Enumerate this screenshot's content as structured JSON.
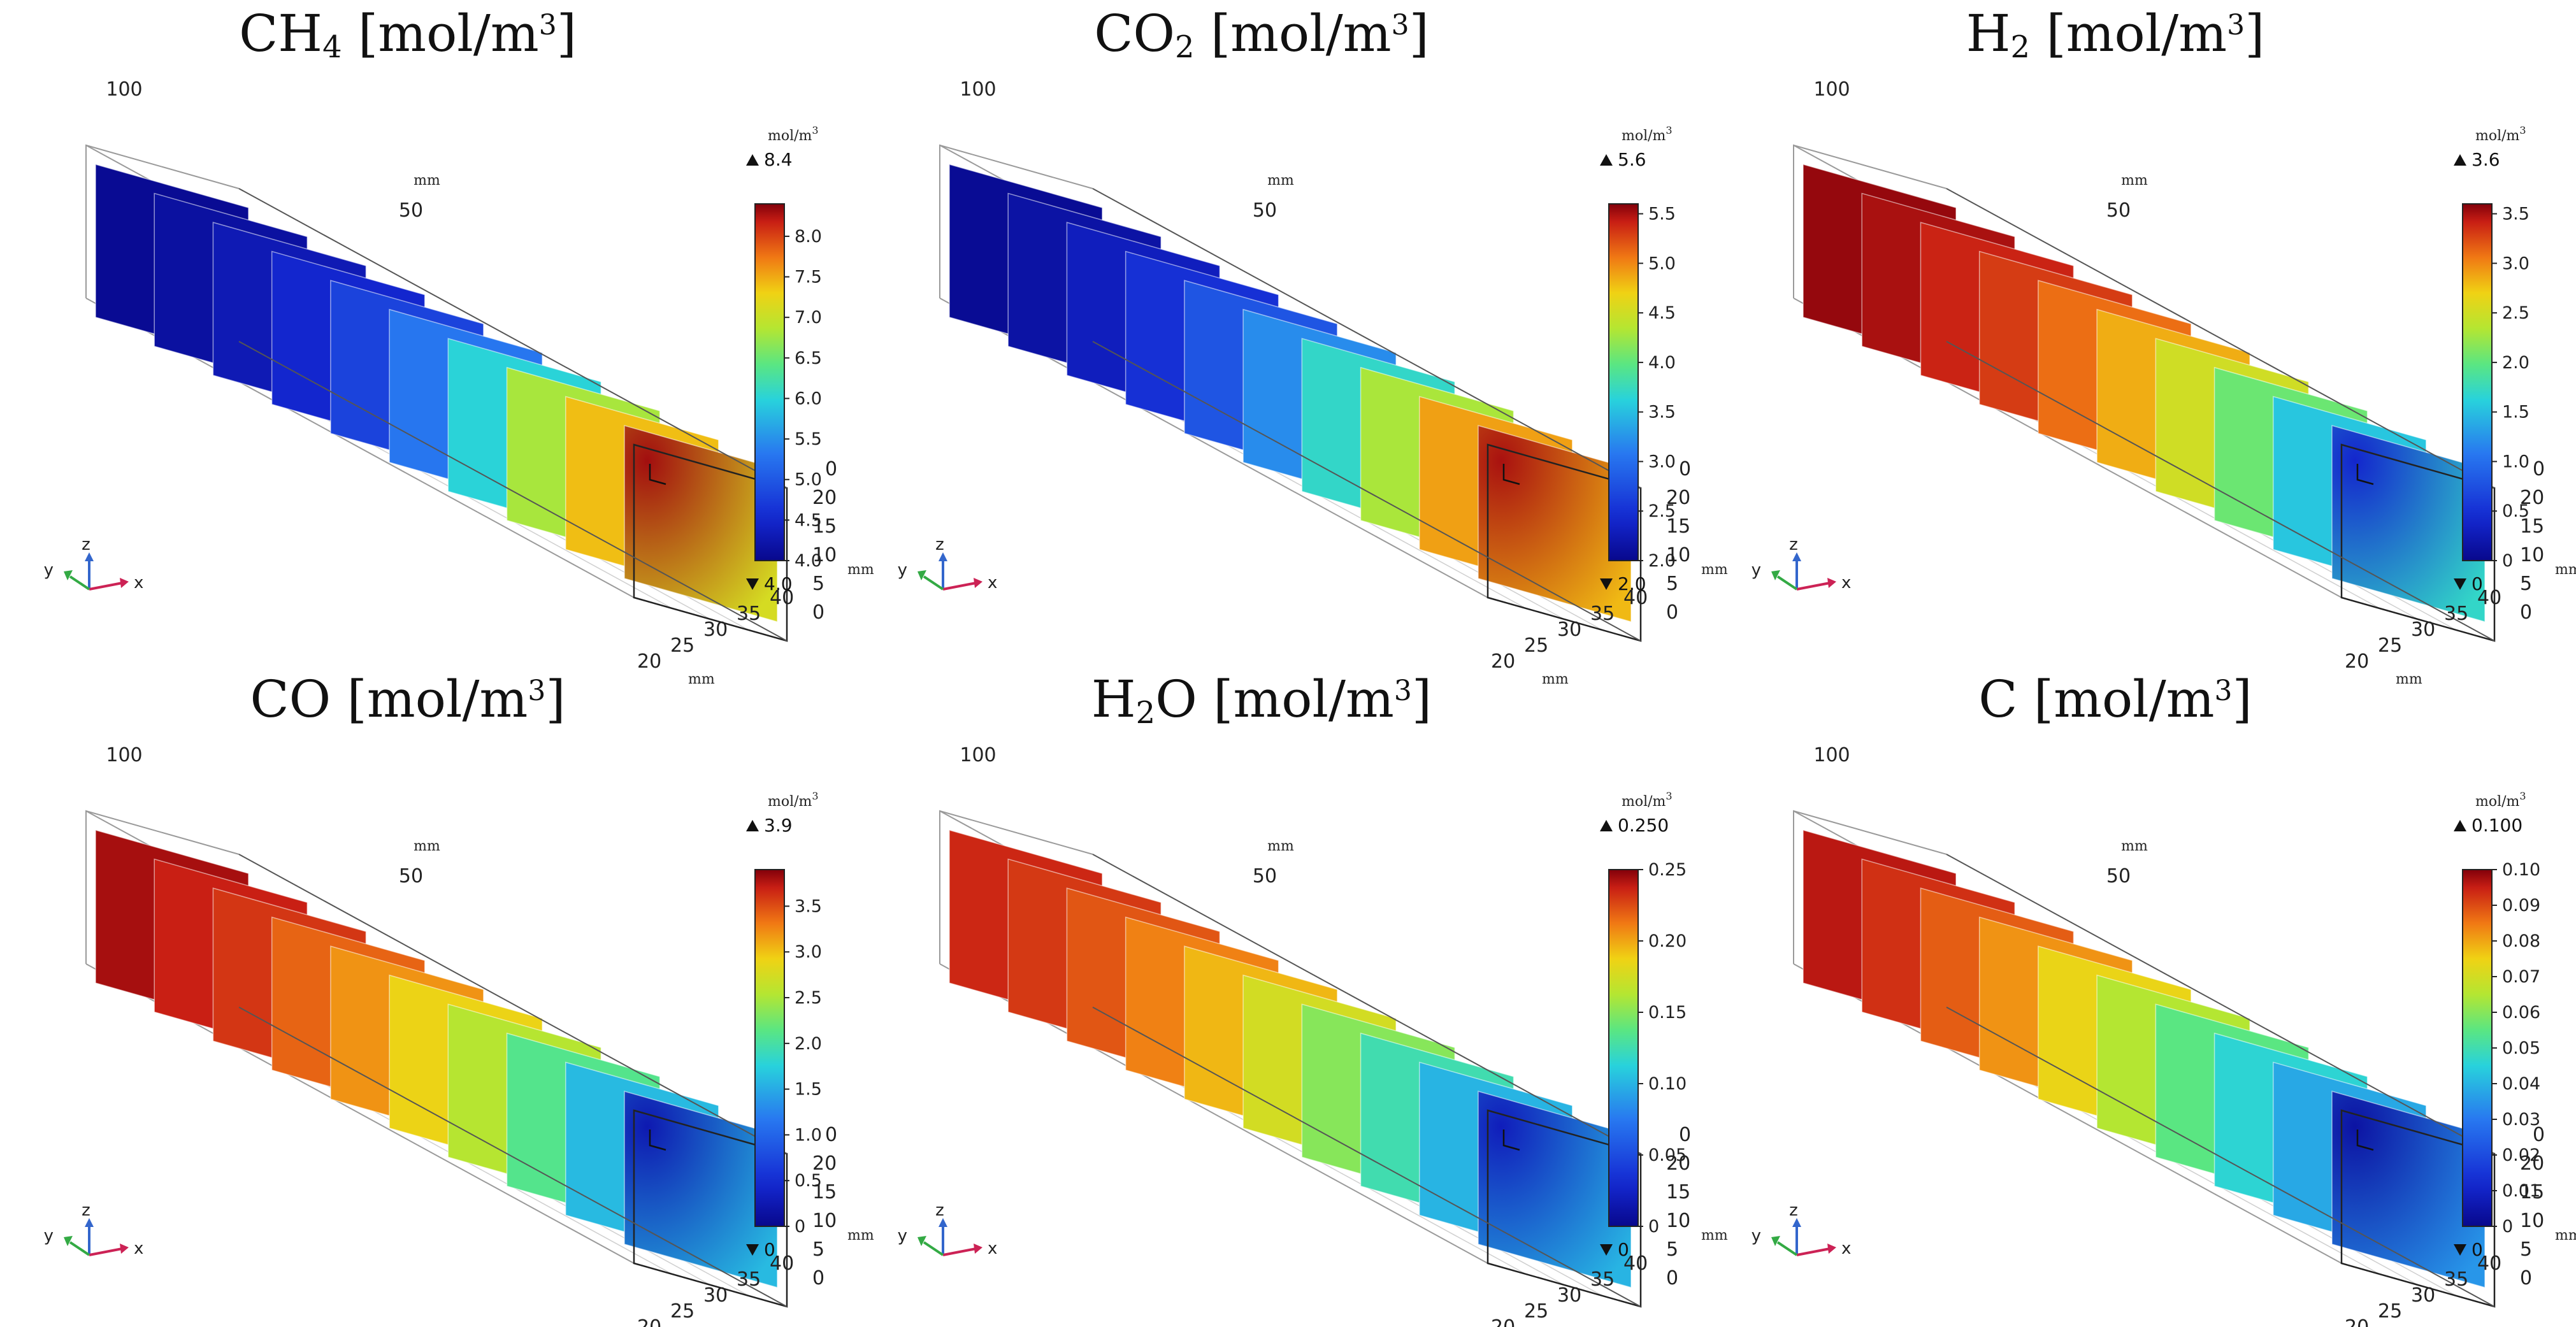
{
  "chart_data": [
    {
      "type": "heatmap",
      "title": "CH4 [mol/m3]",
      "title_parts": {
        "base": "CH",
        "sub": "4",
        "post": " [mol/m",
        "sup": "3",
        "end": "]"
      },
      "colorbar": {
        "unit_label": "mol/m",
        "unit_sup": "3",
        "max_label": "8.4",
        "min_label": "4.0",
        "range": [
          4.0,
          8.4
        ],
        "ticks": [
          "4.0",
          "4.5",
          "5.0",
          "5.5",
          "6.0",
          "6.5",
          "7.0",
          "7.5",
          "8.0"
        ]
      },
      "slices": {
        "count": 10,
        "trend": "increasing",
        "values": [
          4.05,
          4.15,
          4.3,
          4.5,
          4.8,
          5.3,
          6.0,
          6.8,
          7.4,
          7.9
        ]
      },
      "end_face": {
        "corner_value": 8.3,
        "edge_value": 7.1
      }
    },
    {
      "type": "heatmap",
      "title": "CO2 [mol/m3]",
      "title_parts": {
        "base": "CO",
        "sub": "2",
        "post": " [mol/m",
        "sup": "3",
        "end": "]"
      },
      "colorbar": {
        "unit_label": "mol/m",
        "unit_sup": "3",
        "max_label": "5.6",
        "min_label": "2.0",
        "range": [
          2.0,
          5.6
        ],
        "ticks": [
          "2.0",
          "2.5",
          "3.0",
          "3.5",
          "4.0",
          "4.5",
          "5.0",
          "5.5"
        ]
      },
      "slices": {
        "count": 10,
        "trend": "increasing",
        "values": [
          2.05,
          2.15,
          2.3,
          2.5,
          2.8,
          3.2,
          3.7,
          4.3,
          4.9,
          5.3
        ]
      },
      "end_face": {
        "corner_value": 5.5,
        "edge_value": 4.8
      }
    },
    {
      "type": "heatmap",
      "title": "H2 [mol/m3]",
      "title_parts": {
        "base": "H",
        "sub": "2",
        "post": " [mol/m",
        "sup": "3",
        "end": "]"
      },
      "colorbar": {
        "unit_label": "mol/m",
        "unit_sup": "3",
        "max_label": "3.6",
        "min_label": "0",
        "range": [
          0,
          3.6
        ],
        "ticks": [
          "0",
          "0.5",
          "1.0",
          "1.5",
          "2.0",
          "2.5",
          "3.0",
          "3.5"
        ]
      },
      "slices": {
        "count": 10,
        "trend": "decreasing",
        "values": [
          3.55,
          3.5,
          3.4,
          3.3,
          3.1,
          2.85,
          2.5,
          2.05,
          1.55,
          1.0
        ]
      },
      "end_face": {
        "corner_value": 0.4,
        "edge_value": 1.7
      }
    },
    {
      "type": "heatmap",
      "title": "CO [mol/m3]",
      "title_parts": {
        "base": "CO",
        "sub": "",
        "post": " [mol/m",
        "sup": "3",
        "end": "]"
      },
      "colorbar": {
        "unit_label": "mol/m",
        "unit_sup": "3",
        "max_label": "3.9",
        "min_label": "0",
        "range": [
          0,
          3.9
        ],
        "ticks": [
          "0",
          "0.5",
          "1.0",
          "1.5",
          "2.0",
          "2.5",
          "3.0",
          "3.5"
        ]
      },
      "slices": {
        "count": 10,
        "trend": "decreasing",
        "values": [
          3.8,
          3.7,
          3.6,
          3.4,
          3.2,
          2.9,
          2.55,
          2.1,
          1.6,
          1.1
        ]
      },
      "end_face": {
        "corner_value": 0.25,
        "edge_value": 1.6
      }
    },
    {
      "type": "heatmap",
      "title": "H2O [mol/m3]",
      "title_parts": {
        "base": "H",
        "sub": "2",
        "post": "O [mol/m",
        "sup": "3",
        "end": "]"
      },
      "colorbar": {
        "unit_label": "mol/m",
        "unit_sup": "3",
        "max_label": "0.250",
        "min_label": "0",
        "range": [
          0,
          0.25
        ],
        "ticks": [
          "0",
          "0.05",
          "0.10",
          "0.15",
          "0.20",
          "0.25"
        ]
      },
      "slices": {
        "count": 10,
        "trend": "decreasing",
        "values": [
          0.235,
          0.23,
          0.222,
          0.21,
          0.195,
          0.175,
          0.15,
          0.125,
          0.1,
          0.075
        ]
      },
      "end_face": {
        "corner_value": 0.02,
        "edge_value": 0.1
      }
    },
    {
      "type": "heatmap",
      "title": "C [mol/m3]",
      "title_parts": {
        "base": "C",
        "sub": "",
        "post": " [mol/m",
        "sup": "3",
        "end": "]"
      },
      "colorbar": {
        "unit_label": "mol/m",
        "unit_sup": "3",
        "max_label": "0.100",
        "min_label": "0",
        "range": [
          0,
          0.1
        ],
        "ticks": [
          "0",
          "0.01",
          "0.02",
          "0.03",
          "0.04",
          "0.05",
          "0.06",
          "0.07",
          "0.08",
          "0.09",
          "0.10"
        ]
      },
      "slices": {
        "count": 10,
        "trend": "decreasing",
        "values": [
          0.096,
          0.093,
          0.088,
          0.082,
          0.074,
          0.065,
          0.055,
          0.046,
          0.038,
          0.03
        ]
      },
      "end_face": {
        "corner_value": 0.004,
        "edge_value": 0.035
      }
    }
  ],
  "axes": {
    "z_axis_ticks": [
      "100",
      "50"
    ],
    "height_ticks": [
      "0",
      "20",
      "15",
      "10",
      "5",
      "0"
    ],
    "width_ticks": [
      "20",
      "25",
      "30",
      "35",
      "40"
    ],
    "unit_label": "mm",
    "triad_labels": {
      "x": "x",
      "y": "y",
      "z": "z"
    }
  },
  "colors": {
    "box_line": "#9a9a9a",
    "arrow_x": "#cc2255",
    "arrow_y": "#33aa44",
    "arrow_z": "#3366cc"
  }
}
